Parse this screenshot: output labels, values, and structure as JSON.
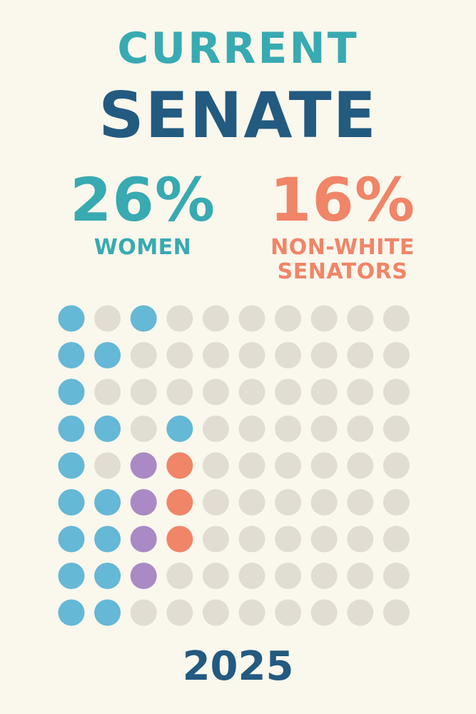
{
  "title": {
    "line1": "CURRENT",
    "line2": "SENATE"
  },
  "stats": {
    "women": {
      "value": "26%",
      "label": "WOMEN"
    },
    "non_white": {
      "value": "16%",
      "label": "NON-WHITE SENATORS"
    }
  },
  "year": "2025",
  "colors": {
    "background": "#faf7ec",
    "blue": "#65b8d6",
    "purple": "#a98ac4",
    "orange": "#f08568",
    "gray": "#e1ddd2",
    "teal": "#38aab2",
    "navy": "#235a80"
  },
  "chart_data": {
    "type": "waffle",
    "rows": 9,
    "cols": 10,
    "legend": [
      "blue",
      "purple",
      "orange",
      "gray"
    ],
    "grid": [
      [
        "blue",
        "gray",
        "blue",
        "gray",
        "gray",
        "gray",
        "gray",
        "gray",
        "gray",
        "gray"
      ],
      [
        "blue",
        "blue",
        "gray",
        "gray",
        "gray",
        "gray",
        "gray",
        "gray",
        "gray",
        "gray"
      ],
      [
        "blue",
        "gray",
        "gray",
        "gray",
        "gray",
        "gray",
        "gray",
        "gray",
        "gray",
        "gray"
      ],
      [
        "blue",
        "blue",
        "gray",
        "blue",
        "gray",
        "gray",
        "gray",
        "gray",
        "gray",
        "gray"
      ],
      [
        "blue",
        "gray",
        "purple",
        "orange",
        "gray",
        "gray",
        "gray",
        "gray",
        "gray",
        "gray"
      ],
      [
        "blue",
        "blue",
        "purple",
        "orange",
        "gray",
        "gray",
        "gray",
        "gray",
        "gray",
        "gray"
      ],
      [
        "blue",
        "blue",
        "purple",
        "orange",
        "gray",
        "gray",
        "gray",
        "gray",
        "gray",
        "gray"
      ],
      [
        "blue",
        "blue",
        "purple",
        "gray",
        "gray",
        "gray",
        "gray",
        "gray",
        "gray",
        "gray"
      ],
      [
        "blue",
        "blue",
        "gray",
        "gray",
        "gray",
        "gray",
        "gray",
        "gray",
        "gray",
        "gray"
      ]
    ]
  }
}
